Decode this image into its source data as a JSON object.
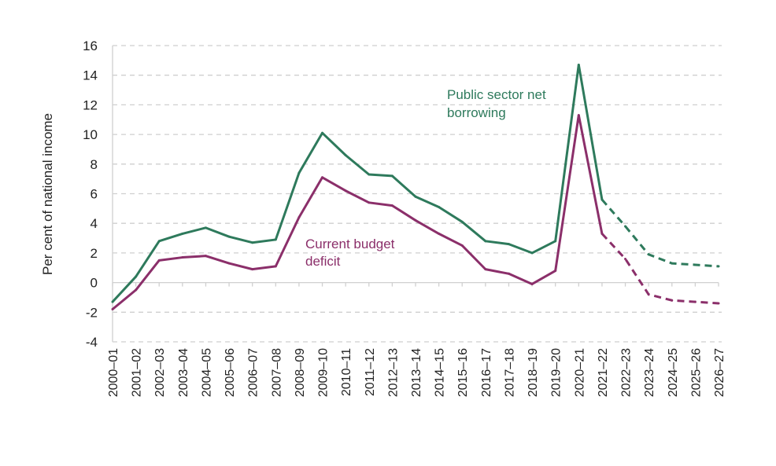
{
  "chart_data": {
    "type": "line",
    "title": "",
    "xlabel": "",
    "ylabel": "Per cent of national income",
    "ylim": [
      -4,
      16
    ],
    "yticks": [
      -4,
      -2,
      0,
      2,
      4,
      6,
      8,
      10,
      12,
      14,
      16
    ],
    "grid": true,
    "x": [
      "2000–01",
      "2001–02",
      "2002–03",
      "2003–04",
      "2004–05",
      "2005–06",
      "2006–07",
      "2007–08",
      "2008–09",
      "2009–10",
      "2010–11",
      "2011–12",
      "2012–13",
      "2013–14",
      "2014–15",
      "2015–16",
      "2016–17",
      "2017–18",
      "2018–19",
      "2019–20",
      "2020–21",
      "2021–22",
      "2022–23",
      "2023–24",
      "2024–25",
      "2025–26",
      "2026–27"
    ],
    "forecast_from": "2021–22",
    "series": [
      {
        "name": "Public sector net borrowing",
        "label_lines": [
          "Public sector net",
          "borrowing"
        ],
        "color": "#2e7a5c",
        "values": [
          -1.3,
          0.4,
          2.8,
          3.3,
          3.7,
          3.1,
          2.7,
          2.9,
          7.4,
          10.1,
          8.6,
          7.3,
          7.2,
          5.8,
          5.1,
          4.1,
          2.8,
          2.6,
          2.0,
          2.8,
          14.7,
          5.6,
          3.8,
          1.9,
          1.3,
          1.2,
          1.1
        ]
      },
      {
        "name": "Current budget deficit",
        "label_lines": [
          "Current budget",
          "deficit"
        ],
        "color": "#8b2f6a",
        "values": [
          -1.8,
          -0.5,
          1.5,
          1.7,
          1.8,
          1.3,
          0.9,
          1.1,
          4.4,
          7.1,
          6.2,
          5.4,
          5.2,
          4.2,
          3.3,
          2.5,
          0.9,
          0.6,
          -0.1,
          0.8,
          11.3,
          3.3,
          1.6,
          -0.8,
          -1.2,
          -1.3,
          -1.4
        ]
      }
    ]
  }
}
